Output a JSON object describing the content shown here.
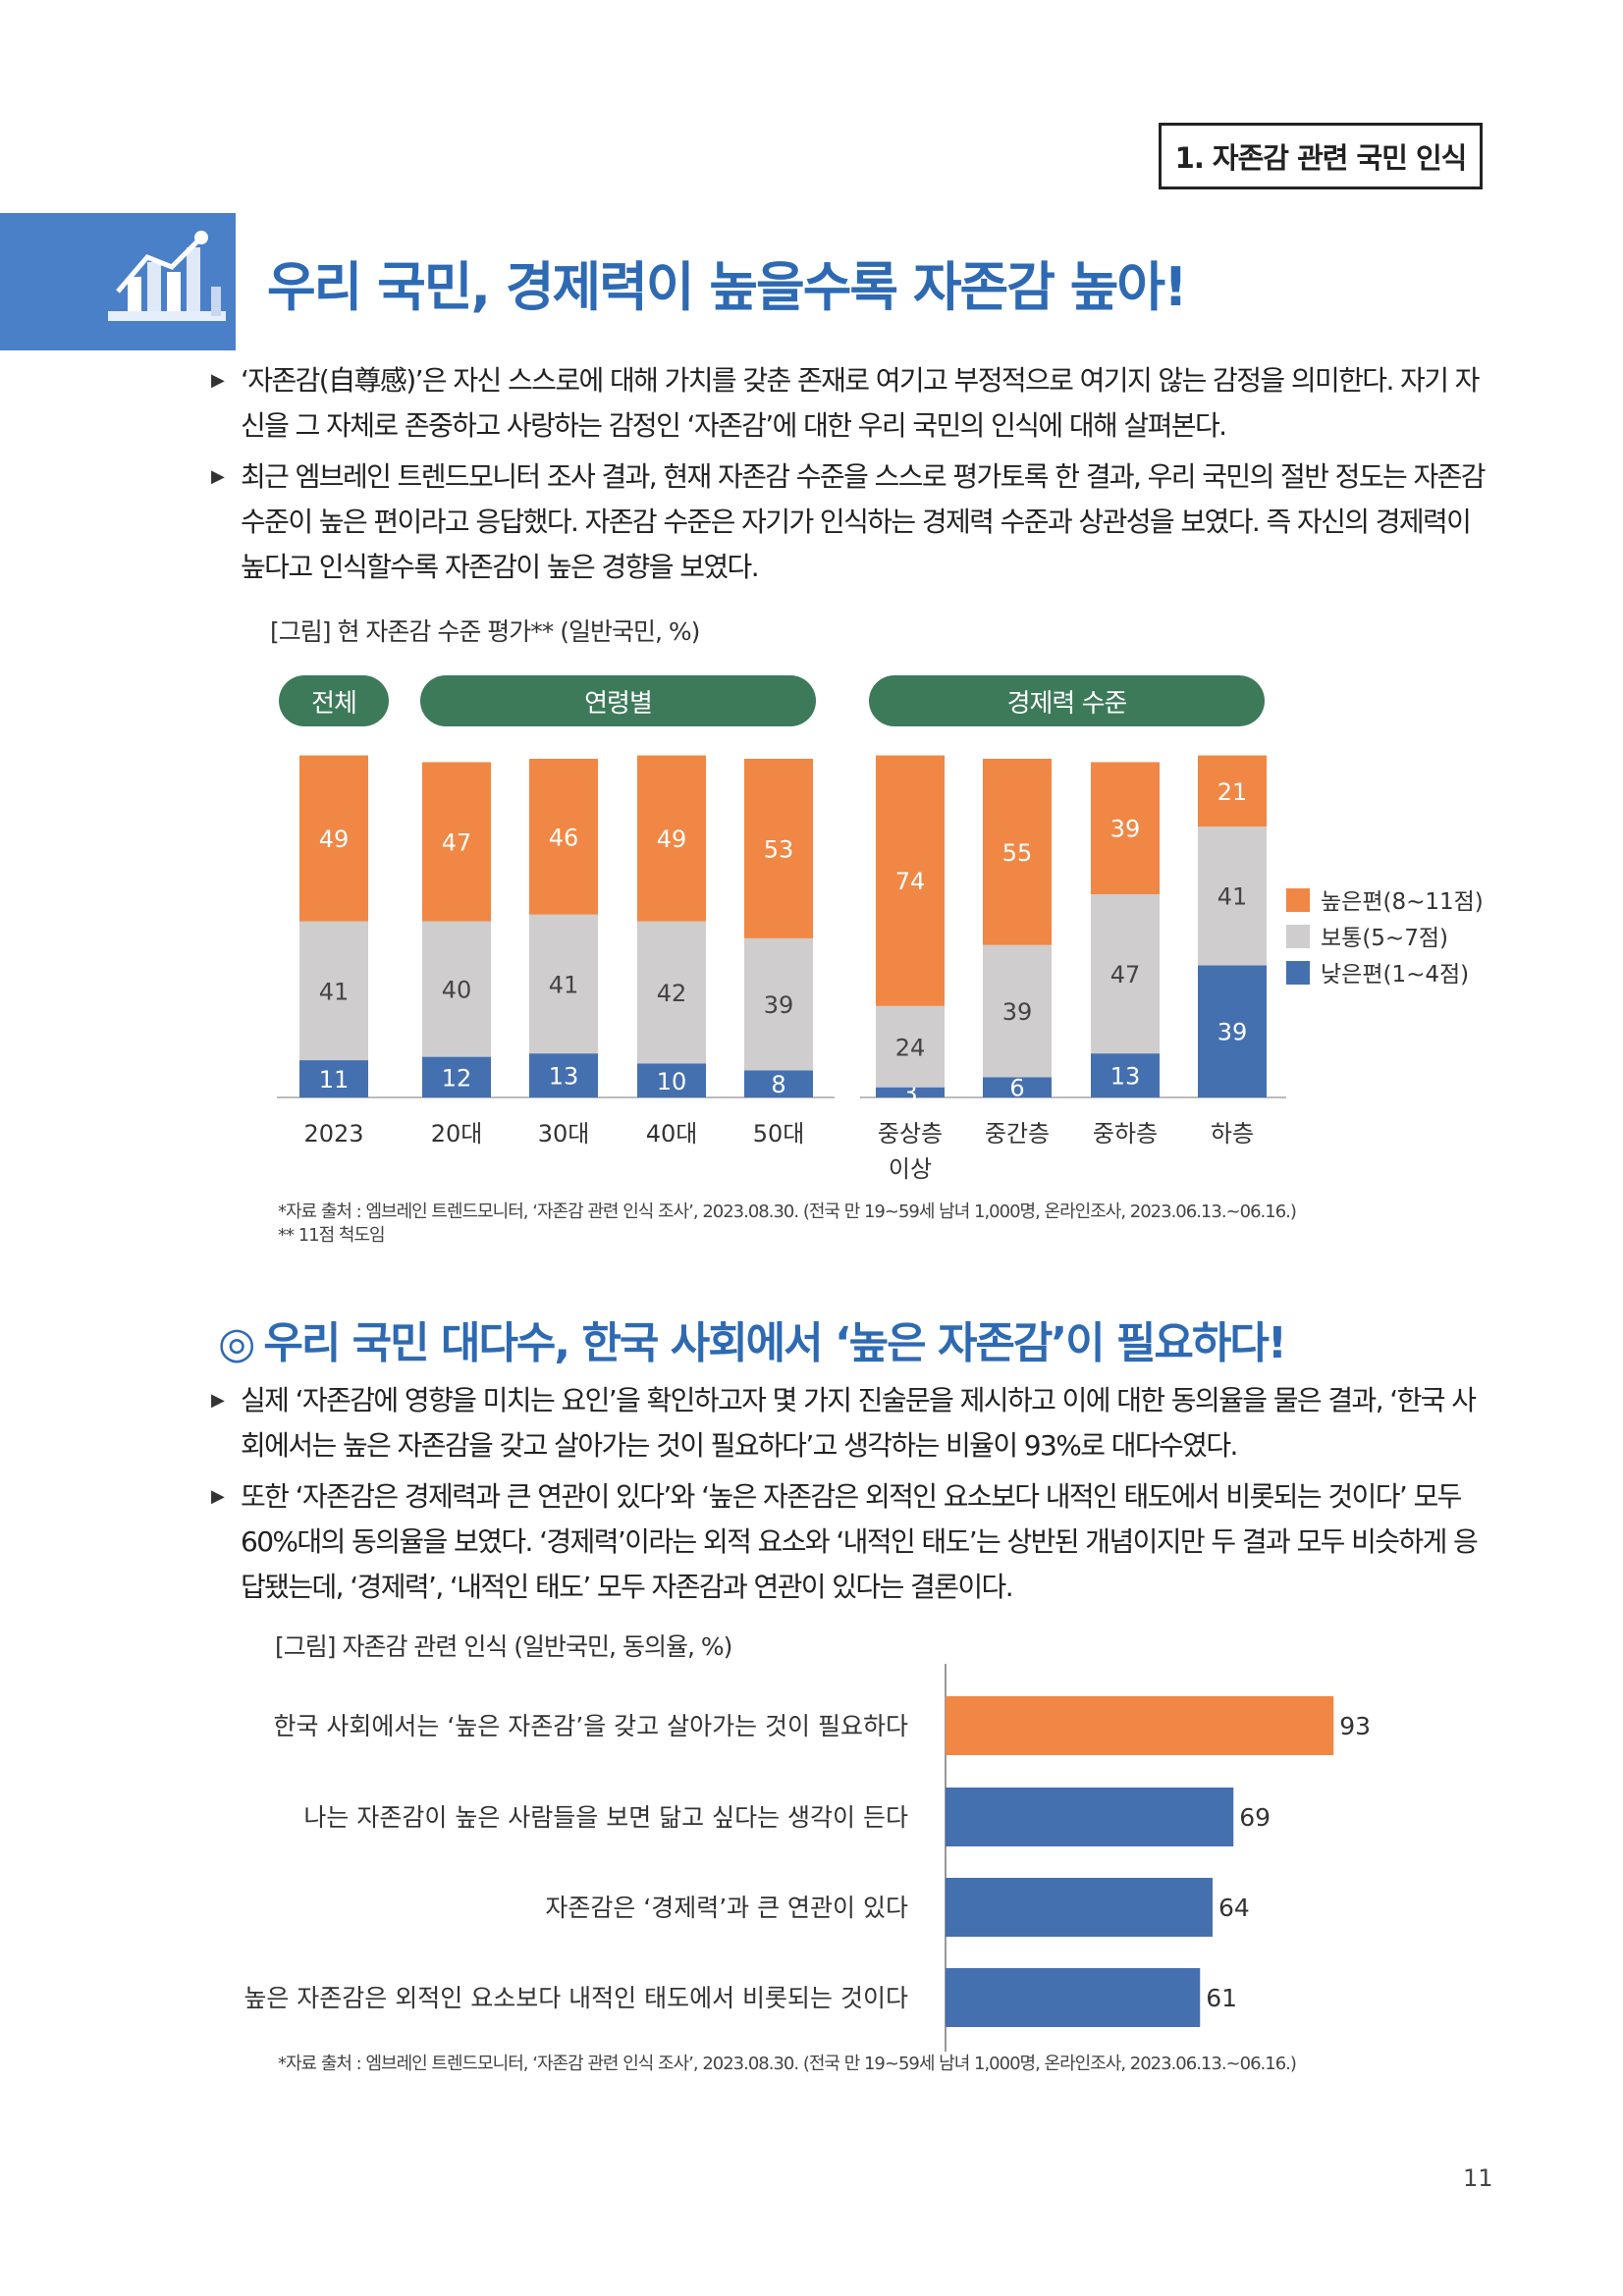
{
  "header": {
    "section_label": "1. 자존감 관련 국민 인식"
  },
  "section1": {
    "title": "우리 국민, 경제력이 높을수록 자존감 높아!",
    "paragraphs": [
      "‘자존감(自尊感)’은 자신 스스로에 대해 가치를 갖춘 존재로 여기고 부정적으로 여기지 않는 감정을 의미한다. 자기 자신을 그 자체로 존중하고 사랑하는 감정인 ‘자존감’에 대한 우리 국민의 인식에 대해 살펴본다.",
      "최근 엠브레인 트렌드모니터 조사 결과, 현재 자존감 수준을 스스로 평가토록 한 결과, 우리 국민의 절반 정도는 자존감 수준이 높은 편이라고 응답했다. 자존감 수준은 자기가 인식하는 경제력 수준과 상관성을 보였다. 즉 자신의 경제력이 높다고 인식할수록 자존감이 높은 경향을 보였다."
    ],
    "figure_caption": "[그림] 현 자존감 수준 평가** (일반국민, %)",
    "group_labels": [
      "전체",
      "연령별",
      "경제력 수준"
    ],
    "source": "*자료 출처 : 엠브레인 트렌드모니터, ‘자존감 관련 인식 조사’, 2023.08.30. (전국 만 19~59세 남녀 1,000명, 온라인조사, 2023.06.13.~06.16.)",
    "note": "** 11점 척도임"
  },
  "section2": {
    "marker": "◎",
    "title": "우리 국민 대다수, 한국 사회에서 ‘높은 자존감’이 필요하다!",
    "paragraphs": [
      "실제 ‘자존감에 영향을 미치는 요인’을 확인하고자 몇 가지 진술문을 제시하고 이에 대한 동의율을 물은 결과, ‘한국 사회에서는 높은 자존감을 갖고 살아가는 것이 필요하다’고 생각하는 비율이 93%로 대다수였다.",
      "또한 ‘자존감은 경제력과 큰 연관이 있다’와 ‘높은 자존감은 외적인 요소보다 내적인 태도에서 비롯되는 것이다’ 모두 60%대의 동의율을 보였다. ‘경제력’이라는 외적 요소와 ‘내적인 태도’는 상반된 개념이지만 두 결과 모두 비슷하게 응답됐는데, ‘경제력’, ‘내적인 태도’ 모두 자존감과 연관이 있다는 결론이다."
    ],
    "figure_caption": "[그림] 자존감 관련 인식 (일반국민, 동의율, %)",
    "source": "*자료 출처 : 엠브레인 트렌드모니터, ‘자존감 관련 인식 조사’, 2023.08.30. (전국 만 19~59세 남녀 1,000명, 온라인조사, 2023.06.13.~06.16.)"
  },
  "chart_data": [
    {
      "type": "bar",
      "stacked": true,
      "categories": [
        "2023",
        "20대",
        "30대",
        "40대",
        "50대",
        "중상층 이상",
        "중간층",
        "중하층",
        "하층"
      ],
      "series": [
        {
          "name": "낮은편(1~4점)",
          "values": [
            11,
            12,
            13,
            10,
            8,
            3,
            6,
            13,
            39
          ],
          "color": "#4570b0"
        },
        {
          "name": "보통(5~7점)",
          "values": [
            41,
            40,
            41,
            42,
            39,
            24,
            39,
            47,
            41
          ],
          "color": "#cfcdcd"
        },
        {
          "name": "높은편(8~11점)",
          "values": [
            49,
            47,
            46,
            49,
            53,
            74,
            55,
            39,
            21
          ],
          "color": "#f08745"
        }
      ],
      "legend_order": [
        "높은편(8~11점)",
        "보통(5~7점)",
        "낮은편(1~4점)"
      ],
      "legend_position": "right",
      "ylim": [
        0,
        100
      ]
    },
    {
      "type": "bar",
      "orientation": "horizontal",
      "categories": [
        "한국 사회에서는 ‘높은 자존감’을 갖고 살아가는 것이 필요하다",
        "나는 자존감이 높은 사람들을 보면 닮고 싶다는 생각이 든다",
        "자존감은 ‘경제력’과 큰 연관이 있다",
        "높은 자존감은 외적인 요소보다 내적인 태도에서 비롯되는 것이다"
      ],
      "values": [
        93,
        69,
        64,
        61
      ],
      "colors": [
        "#f08745",
        "#4570b0",
        "#4570b0",
        "#4570b0"
      ],
      "xlim": [
        0,
        100
      ]
    }
  ],
  "page_number": "11"
}
